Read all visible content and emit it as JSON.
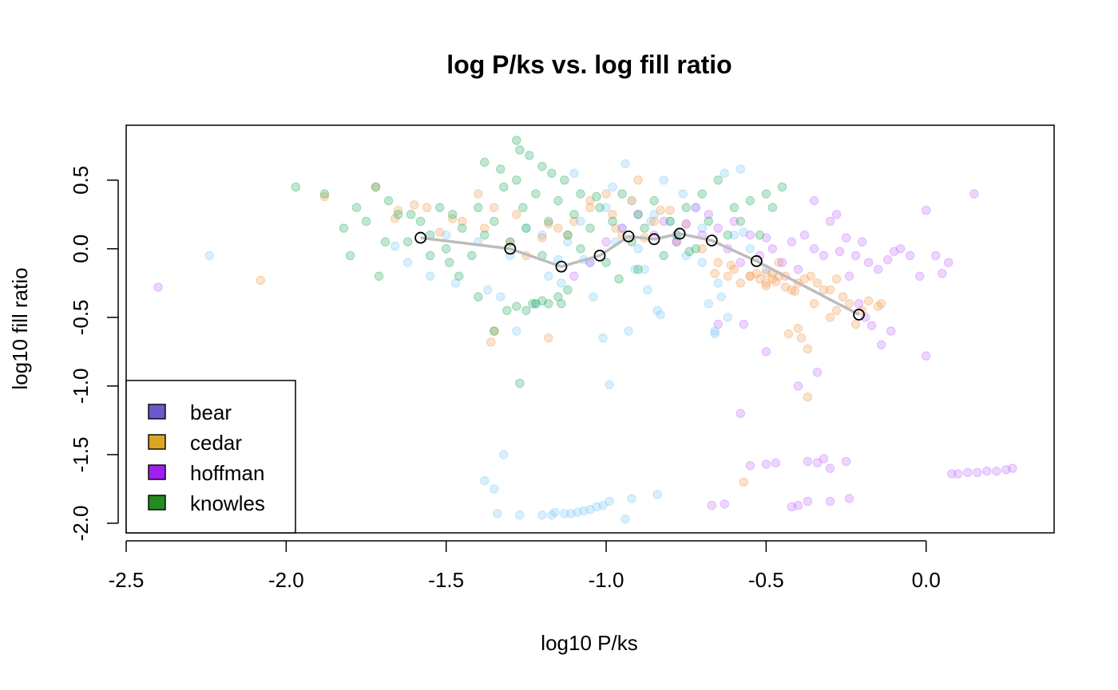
{
  "chart_data": {
    "type": "scatter",
    "title": "log P/ks vs. log fill ratio",
    "xlabel": "log10 P/ks",
    "ylabel": "log10 fill ratio",
    "xlim": [
      -2.5,
      0.4
    ],
    "ylim": [
      -2.07,
      0.9
    ],
    "x_ticks": [
      -2.5,
      -2.0,
      -1.5,
      -1.0,
      -0.5,
      0.0
    ],
    "x_tick_labels": [
      "-2.5",
      "-2.0",
      "-1.5",
      "-1.0",
      "-0.5",
      "0.0"
    ],
    "y_ticks": [
      -2.0,
      -1.5,
      -1.0,
      -0.5,
      0.0,
      0.5
    ],
    "y_tick_labels": [
      "-2.0",
      "-1.5",
      "-1.0",
      "-0.5",
      "0.0",
      "0.5"
    ],
    "grid": false,
    "legend_position": "bottom-left",
    "legend": [
      {
        "name": "bear",
        "color": "#6a5acd"
      },
      {
        "name": "cedar",
        "color": "#daa520"
      },
      {
        "name": "hoffman",
        "color": "#a020f0"
      },
      {
        "name": "knowles",
        "color": "#228b22"
      }
    ],
    "point_colors": {
      "bear": "#87cefa",
      "cedar": "#f4a460",
      "hoffman": "#c77dff",
      "knowles": "#3cb371"
    },
    "trend": {
      "color": "#bdbdbd",
      "x": [
        -1.58,
        -1.3,
        -1.14,
        -1.02,
        -0.93,
        -0.85,
        -0.77,
        -0.67,
        -0.53,
        -0.21
      ],
      "y": [
        0.08,
        0.0,
        -0.13,
        -0.05,
        0.09,
        0.07,
        0.11,
        0.06,
        -0.09,
        -0.48
      ]
    },
    "series": [
      {
        "name": "bear",
        "x": [
          -2.24,
          -1.66,
          -1.62,
          -1.55,
          -1.47,
          -1.4,
          -1.37,
          -1.33,
          -1.3,
          -1.25,
          -1.2,
          -1.15,
          -1.12,
          -1.08,
          -1.05,
          -1.0,
          -0.98,
          -0.95,
          -0.92,
          -0.9,
          -0.88,
          -0.85,
          -0.82,
          -0.8,
          -0.78,
          -0.75,
          -0.72,
          -0.7,
          -0.68,
          -0.65,
          -0.63,
          -0.6,
          -0.58,
          -0.55,
          -0.5,
          -1.18,
          -1.1,
          -1.04,
          -0.97,
          -0.93,
          -0.87,
          -0.83,
          -0.76,
          -0.66,
          -0.62,
          -0.57,
          -1.28,
          -1.22,
          -1.14,
          -1.07,
          -1.01,
          -0.94,
          -0.84,
          -0.78,
          -0.7,
          -0.64,
          -0.99,
          -0.91,
          -0.86,
          -1.38,
          -1.35,
          -1.32,
          -1.34,
          -1.17,
          -1.16,
          -1.13,
          -1.11,
          -1.09,
          -1.07,
          -1.05,
          -1.03,
          -1.01,
          -0.99,
          -0.94,
          -1.27,
          -1.2,
          -0.92,
          -0.84,
          -0.66,
          -1.5
        ],
        "y": [
          -0.05,
          0.02,
          -0.1,
          -0.2,
          -0.25,
          0.05,
          -0.3,
          -0.35,
          -0.05,
          0.15,
          0.1,
          -0.08,
          0.05,
          0.2,
          -0.1,
          0.3,
          0.45,
          0.15,
          0.35,
          0.0,
          -0.15,
          0.25,
          0.5,
          0.2,
          0.05,
          -0.05,
          0.3,
          0.15,
          -0.4,
          -0.25,
          0.55,
          0.1,
          0.58,
          0.0,
          -0.15,
          -0.2,
          0.55,
          -0.35,
          0.05,
          -0.6,
          -0.3,
          -0.48,
          0.4,
          -0.62,
          -0.5,
          0.12,
          -0.6,
          -0.4,
          -0.25,
          -0.08,
          -0.65,
          0.62,
          -0.45,
          0.1,
          -0.1,
          -0.35,
          -0.99,
          -0.15,
          0.2,
          -1.69,
          -1.75,
          -1.5,
          -1.93,
          -1.94,
          -1.92,
          -1.93,
          -1.93,
          -1.92,
          -1.91,
          -1.9,
          -1.88,
          -1.87,
          -1.84,
          -1.97,
          -1.94,
          -1.94,
          -1.82,
          -1.79,
          -0.6,
          0.1
        ]
      },
      {
        "name": "cedar",
        "x": [
          -2.08,
          -1.88,
          -1.72,
          -1.66,
          -1.65,
          -1.6,
          -1.52,
          -1.45,
          -1.4,
          -1.38,
          -1.35,
          -1.3,
          -1.28,
          -1.25,
          -1.2,
          -1.18,
          -1.15,
          -1.12,
          -1.1,
          -1.05,
          -1.0,
          -0.98,
          -0.95,
          -0.92,
          -0.9,
          -0.85,
          -0.8,
          -0.78,
          -0.75,
          -0.7,
          -0.65,
          -0.62,
          -0.6,
          -0.58,
          -0.55,
          -0.52,
          -0.5,
          -0.48,
          -0.46,
          -0.44,
          -0.42,
          -0.4,
          -0.38,
          -0.36,
          -0.34,
          -0.32,
          -0.3,
          -0.28,
          -0.26,
          -0.24,
          -0.22,
          -0.2,
          -0.18,
          -0.15,
          -0.14,
          -0.5,
          -0.47,
          -0.44,
          -0.41,
          -0.39,
          -0.37,
          -1.35,
          -1.18,
          -1.36,
          -0.57,
          -0.66,
          -0.61,
          -0.55,
          -0.53,
          -0.5,
          -0.48,
          -0.46,
          -0.43,
          -0.4,
          -0.37,
          -0.35,
          -0.3,
          -0.28,
          -1.56,
          -1.48,
          -1.05,
          -0.97,
          -0.88,
          -0.83
        ],
        "y": [
          -0.23,
          0.38,
          0.45,
          0.22,
          0.28,
          0.32,
          0.12,
          0.2,
          0.4,
          0.15,
          0.3,
          0.05,
          0.25,
          -0.05,
          0.08,
          0.18,
          0.15,
          0.1,
          0.2,
          0.3,
          0.4,
          0.25,
          0.1,
          0.35,
          0.5,
          0.2,
          0.28,
          0.05,
          0.18,
          0.0,
          -0.1,
          -0.2,
          -0.15,
          -0.25,
          -0.2,
          -0.22,
          -0.25,
          -0.18,
          -0.2,
          -0.28,
          -0.3,
          -0.25,
          -0.22,
          -0.2,
          -0.25,
          -0.3,
          -0.5,
          -0.45,
          -0.35,
          -0.4,
          -0.55,
          -0.45,
          -0.38,
          -0.42,
          -0.4,
          -0.18,
          -0.24,
          -0.2,
          -0.31,
          -0.65,
          -1.08,
          -0.6,
          -0.65,
          -0.68,
          -1.7,
          -0.18,
          -0.12,
          -0.2,
          -0.18,
          -0.27,
          -0.22,
          -0.1,
          -0.62,
          -0.58,
          -0.73,
          -0.4,
          -0.3,
          -0.22,
          0.3,
          0.22,
          0.35,
          0.15,
          0.08,
          0.28
        ]
      },
      {
        "name": "hoffman",
        "x": [
          -2.4,
          -1.1,
          -1.05,
          -1.0,
          -0.95,
          -0.9,
          -0.85,
          -0.82,
          -0.78,
          -0.75,
          -0.72,
          -0.7,
          -0.68,
          -0.65,
          -0.62,
          -0.6,
          -0.58,
          -0.55,
          -0.52,
          -0.5,
          -0.48,
          -0.45,
          -0.42,
          -0.4,
          -0.38,
          -0.35,
          -0.32,
          -0.3,
          -0.28,
          -0.25,
          -0.22,
          -0.2,
          -0.18,
          -0.15,
          -0.12,
          -0.1,
          -0.08,
          -0.05,
          -0.02,
          0.0,
          0.03,
          0.05,
          0.07,
          0.15,
          -0.27,
          -0.24,
          -0.21,
          -0.19,
          -0.17,
          -0.14,
          -0.11,
          -0.57,
          -0.5,
          -0.4,
          -0.34,
          -0.55,
          -0.5,
          -0.47,
          -0.37,
          -0.34,
          -0.32,
          -0.3,
          -0.25,
          -0.67,
          -0.63,
          -0.42,
          -0.4,
          -0.37,
          -0.3,
          -0.24,
          0.08,
          0.1,
          0.13,
          0.16,
          0.19,
          0.22,
          0.25,
          0.27,
          -0.58,
          0.0,
          -0.65,
          -0.35
        ],
        "y": [
          -0.28,
          -0.2,
          -0.1,
          0.05,
          0.15,
          0.25,
          0.1,
          0.2,
          0.05,
          0.18,
          0.3,
          0.1,
          0.25,
          0.15,
          0.0,
          0.2,
          -0.1,
          0.1,
          -0.05,
          0.08,
          0.0,
          -0.1,
          0.05,
          -0.15,
          0.1,
          0.0,
          -0.05,
          0.2,
          0.25,
          0.08,
          -0.05,
          0.05,
          -0.1,
          -0.15,
          -0.08,
          -0.02,
          0.0,
          -0.05,
          -0.2,
          0.28,
          -0.05,
          -0.18,
          -0.1,
          0.4,
          -0.02,
          -0.2,
          -0.4,
          -0.5,
          -0.56,
          -0.7,
          -0.6,
          -0.55,
          -0.75,
          -1.0,
          -0.9,
          -1.58,
          -1.57,
          -1.56,
          -1.55,
          -1.56,
          -1.53,
          -1.6,
          -1.55,
          -1.87,
          -1.86,
          -1.88,
          -1.87,
          -1.84,
          -1.84,
          -1.82,
          -1.64,
          -1.64,
          -1.63,
          -1.63,
          -1.62,
          -1.62,
          -1.61,
          -1.6,
          -1.2,
          -0.78,
          -0.55,
          0.35
        ]
      },
      {
        "name": "knowles",
        "x": [
          -1.97,
          -1.88,
          -1.82,
          -1.78,
          -1.75,
          -1.72,
          -1.68,
          -1.65,
          -1.62,
          -1.58,
          -1.55,
          -1.52,
          -1.5,
          -1.48,
          -1.45,
          -1.42,
          -1.4,
          -1.38,
          -1.35,
          -1.32,
          -1.3,
          -1.28,
          -1.26,
          -1.25,
          -1.22,
          -1.2,
          -1.18,
          -1.15,
          -1.12,
          -1.1,
          -1.08,
          -1.05,
          -1.02,
          -1.0,
          -0.98,
          -0.95,
          -0.92,
          -0.9,
          -0.88,
          -0.85,
          -0.82,
          -0.8,
          -0.78,
          -0.75,
          -0.72,
          -0.7,
          -0.68,
          -0.65,
          -0.62,
          -0.6,
          -0.58,
          -0.55,
          -0.52,
          -0.5,
          -0.48,
          -0.45,
          -1.28,
          -1.27,
          -1.24,
          -1.2,
          -1.17,
          -1.13,
          -1.08,
          -1.03,
          -1.38,
          -1.33,
          -1.22,
          -1.14,
          -1.31,
          -1.28,
          -1.25,
          -1.23,
          -1.2,
          -1.18,
          -1.15,
          -1.12,
          -1.46,
          -1.49,
          -1.55,
          -1.61,
          -1.71,
          -1.8,
          -1.69,
          -0.96,
          -0.9,
          -0.74,
          -1.27,
          -1.35,
          -1.4
        ],
        "y": [
          0.45,
          0.4,
          0.15,
          0.3,
          0.2,
          0.45,
          0.35,
          0.25,
          0.05,
          0.2,
          0.1,
          0.3,
          0.0,
          0.25,
          0.15,
          -0.05,
          0.3,
          0.1,
          0.2,
          0.45,
          0.05,
          0.5,
          0.3,
          0.15,
          0.4,
          -0.05,
          0.2,
          0.35,
          0.1,
          0.25,
          0.0,
          0.15,
          0.3,
          -0.1,
          0.2,
          0.4,
          0.05,
          0.25,
          0.15,
          0.35,
          -0.05,
          0.2,
          0.1,
          0.3,
          0.0,
          0.4,
          0.2,
          0.5,
          0.1,
          0.3,
          0.2,
          0.35,
          0.1,
          0.4,
          0.3,
          0.45,
          0.79,
          0.72,
          0.68,
          0.6,
          0.55,
          0.5,
          0.4,
          0.38,
          0.63,
          0.58,
          -0.4,
          -0.4,
          -0.45,
          -0.42,
          -0.45,
          -0.4,
          -0.38,
          -0.4,
          -0.35,
          -0.3,
          -0.2,
          -0.1,
          -0.05,
          0.25,
          -0.2,
          -0.05,
          0.05,
          -0.22,
          -0.15,
          -0.02,
          -0.98,
          -0.6,
          -0.35
        ]
      }
    ]
  }
}
